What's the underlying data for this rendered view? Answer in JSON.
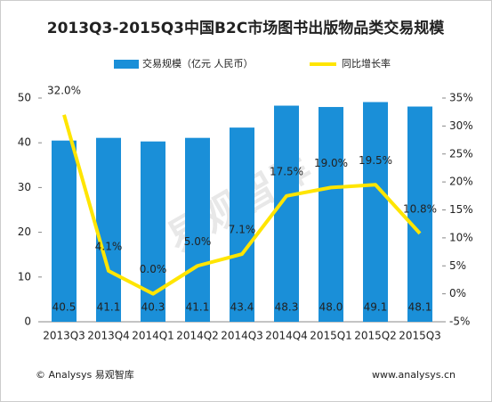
{
  "chart_data": {
    "type": "bar-line",
    "title": "2013Q3-2015Q3中国B2C市场图书出版物品类交易规模",
    "categories": [
      "2013Q3",
      "2013Q4",
      "2014Q1",
      "2014Q2",
      "2014Q3",
      "2014Q4",
      "2015Q1",
      "2015Q2",
      "2015Q3"
    ],
    "series": [
      {
        "name": "交易规模（亿元 人民币）",
        "color": "#1a8fd8",
        "type": "bar",
        "values": [
          40.5,
          41.1,
          40.3,
          41.1,
          43.4,
          48.3,
          48.0,
          49.1,
          48.1
        ],
        "value_labels": [
          "40.5",
          "41.1",
          "40.3",
          "41.1",
          "43.4",
          "48.3",
          "48.0",
          "49.1",
          "48.1"
        ]
      },
      {
        "name": "同比增长率",
        "color": "#ffe500",
        "type": "line",
        "axis": "y2",
        "values": [
          32.0,
          4.1,
          0.0,
          5.0,
          7.1,
          17.5,
          19.0,
          19.5,
          10.8
        ],
        "value_labels": [
          "32.0%",
          "4.1%",
          "0.0%",
          "5.0%",
          "7.1%",
          "17.5%",
          "19.0%",
          "19.5%",
          "10.8%"
        ]
      }
    ],
    "ylim": [
      0,
      50
    ],
    "yticks": [
      0,
      10,
      20,
      30,
      40,
      50
    ],
    "y2lim": [
      -5,
      35
    ],
    "y2ticks": [
      {
        "value": -5,
        "label": "-5%"
      },
      {
        "value": 0,
        "label": "0%"
      },
      {
        "value": 5,
        "label": "5%"
      },
      {
        "value": 10,
        "label": "10%"
      },
      {
        "value": 15,
        "label": "15%"
      },
      {
        "value": 20,
        "label": "20%"
      },
      {
        "value": 25,
        "label": "25%"
      },
      {
        "value": 30,
        "label": "30%"
      },
      {
        "value": 35,
        "label": "35%"
      }
    ],
    "legend": "top",
    "watermark": "易观智库",
    "source": "© Analysys 易观智库",
    "website": "www.analysys.cn"
  }
}
